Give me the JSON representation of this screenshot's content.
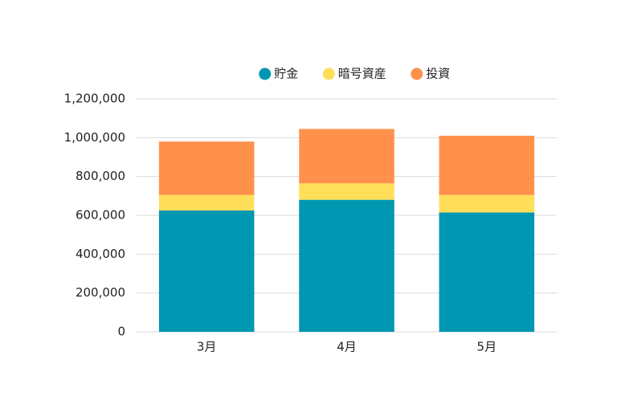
{
  "chart_data": {
    "type": "stacked_bar",
    "categories": [
      "3月",
      "4月",
      "5月"
    ],
    "series": [
      {
        "name": "貯金",
        "color": "#0097b2",
        "values": [
          625000,
          680000,
          615000
        ]
      },
      {
        "name": "暗号資産",
        "color": "#ffde59",
        "values": [
          80000,
          85000,
          90000
        ]
      },
      {
        "name": "投資",
        "color": "#ff914d",
        "values": [
          275000,
          280000,
          305000
        ]
      }
    ],
    "ylim": [
      0,
      1200000
    ],
    "yticks": [
      0,
      {
        "value": 200000,
        "label": "200,000"
      },
      {
        "value": 400000,
        "label": "400,000"
      },
      {
        "value": 600000,
        "label": "600,000"
      },
      {
        "value": 800000,
        "label": "800,000"
      },
      {
        "value": 1000000,
        "label": "1,000,000"
      },
      {
        "value": 1200000,
        "label": "1,200,000"
      }
    ],
    "grid": true,
    "legend": "top"
  }
}
